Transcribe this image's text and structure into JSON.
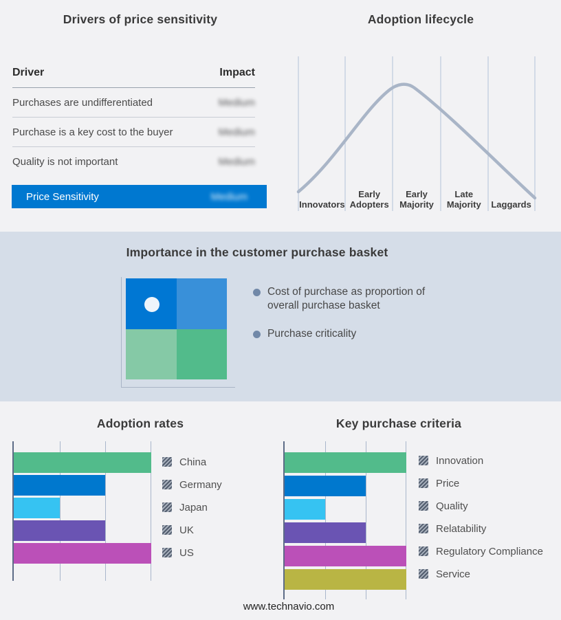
{
  "price_sensitivity": {
    "title": "Drivers of price sensitivity",
    "columns": {
      "driver": "Driver",
      "impact": "Impact"
    },
    "rows": [
      {
        "driver": "Purchases are undifferentiated",
        "impact": "Medium",
        "obscured": true
      },
      {
        "driver": "Purchase is a key cost to the buyer",
        "impact": "Medium",
        "obscured": true
      },
      {
        "driver": "Quality is not important",
        "impact": "Medium",
        "obscured": true
      }
    ],
    "summary_row": {
      "label": "Price Sensitivity",
      "impact": "Medium",
      "obscured": true
    },
    "accent_color": "#0078d0"
  },
  "adoption_lifecycle": {
    "title": "Adoption lifecycle",
    "stages": [
      "Innovators",
      "Early Adopters",
      "Early Majority",
      "Late Majority",
      "Laggards"
    ],
    "curve_color": "#a9b5c7"
  },
  "purchase_basket": {
    "title": "Importance in the customer purchase basket",
    "bullets": [
      "Cost of purchase as proportion of overall purchase basket",
      "Purchase criticality"
    ],
    "quadrant_colors": {
      "top_left": "#0077d3",
      "top_right": "#3990d9",
      "bottom_left": "#85c9a6",
      "bottom_right": "#52bb8b"
    }
  },
  "chart_data": [
    {
      "type": "bar",
      "orientation": "horizontal",
      "title": "Adoption rates",
      "categories": [
        "China",
        "Germany",
        "Japan",
        "UK",
        "US"
      ],
      "values": [
        3,
        2,
        1,
        2,
        3
      ],
      "xlim": [
        0,
        3
      ],
      "gridlines": [
        1,
        2,
        3
      ],
      "grid": true,
      "colors": [
        "#52bb8b",
        "#0078ce",
        "#36c3f2",
        "#6a54b3",
        "#bb50b8"
      ],
      "legend_position": "right",
      "xlabel": "",
      "ylabel": ""
    },
    {
      "type": "bar",
      "orientation": "horizontal",
      "title": "Key purchase criteria",
      "categories": [
        "Innovation",
        "Price",
        "Quality",
        "Relatability",
        "Regulatory Compliance",
        "Service"
      ],
      "values": [
        3,
        2,
        1,
        2,
        3,
        3
      ],
      "xlim": [
        0,
        3
      ],
      "gridlines": [
        1,
        2,
        3
      ],
      "grid": true,
      "colors": [
        "#52bb8b",
        "#0078ce",
        "#36c3f2",
        "#6a54b3",
        "#bb50b8",
        "#b9b544"
      ],
      "legend_position": "right",
      "xlabel": "",
      "ylabel": ""
    }
  ],
  "footer": {
    "url": "www.technavio.com"
  }
}
